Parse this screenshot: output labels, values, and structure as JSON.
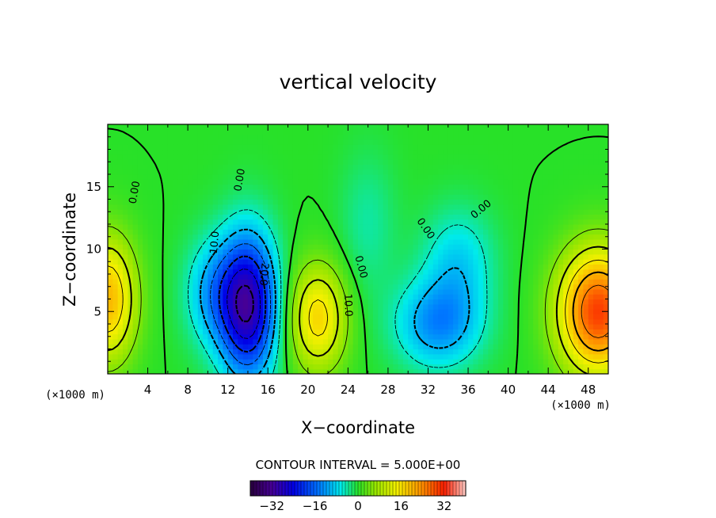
{
  "chart_data": {
    "type": "heatmap",
    "title": "vertical velocity",
    "xlabel": "X−coordinate",
    "ylabel": "Z−coordinate",
    "x_unit": "(×1000 m)",
    "y_unit": "(×1000 m)",
    "xlim": [
      0,
      50
    ],
    "ylim": [
      0,
      20
    ],
    "x_ticks": [
      4,
      8,
      12,
      16,
      20,
      24,
      28,
      32,
      36,
      40,
      44,
      48
    ],
    "y_ticks": [
      5,
      10,
      15
    ],
    "contour_interval_text": "CONTOUR INTERVAL = 5.000E+00",
    "contour_interval": 5,
    "colorbar": {
      "range": [
        -40,
        40
      ],
      "ticks": [
        -32,
        -16,
        0,
        16,
        32
      ],
      "tick_labels": [
        "−32",
        "−16",
        "0",
        "16",
        "32"
      ]
    },
    "contour_labels": [
      "0.00",
      "0.00",
      "0.00",
      "0.00",
      "0.00",
      "10.0",
      "10.0",
      "20.0"
    ],
    "field_features": [
      {
        "x": 14,
        "z": 5.5,
        "value": -30,
        "sx": 2.0,
        "sz": 4.0
      },
      {
        "x": 10.5,
        "z": 6.5,
        "value": -10,
        "sx": 2.0,
        "sz": 3.0
      },
      {
        "x": 33,
        "z": 4.0,
        "value": -13,
        "sx": 3.0,
        "sz": 2.5
      },
      {
        "x": 35,
        "z": 9.0,
        "value": -8,
        "sx": 2.5,
        "sz": 3.0
      },
      {
        "x": 26,
        "z": 12.0,
        "value": -4,
        "sx": 2.0,
        "sz": 4.0
      },
      {
        "x": 21,
        "z": 4.5,
        "value": 17,
        "sx": 2.0,
        "sz": 3.0
      },
      {
        "x": 49,
        "z": 5.0,
        "value": 30,
        "sx": 2.8,
        "sz": 3.5
      },
      {
        "x": 0,
        "z": 6.0,
        "value": 20,
        "sx": 2.0,
        "sz": 3.5
      }
    ]
  }
}
